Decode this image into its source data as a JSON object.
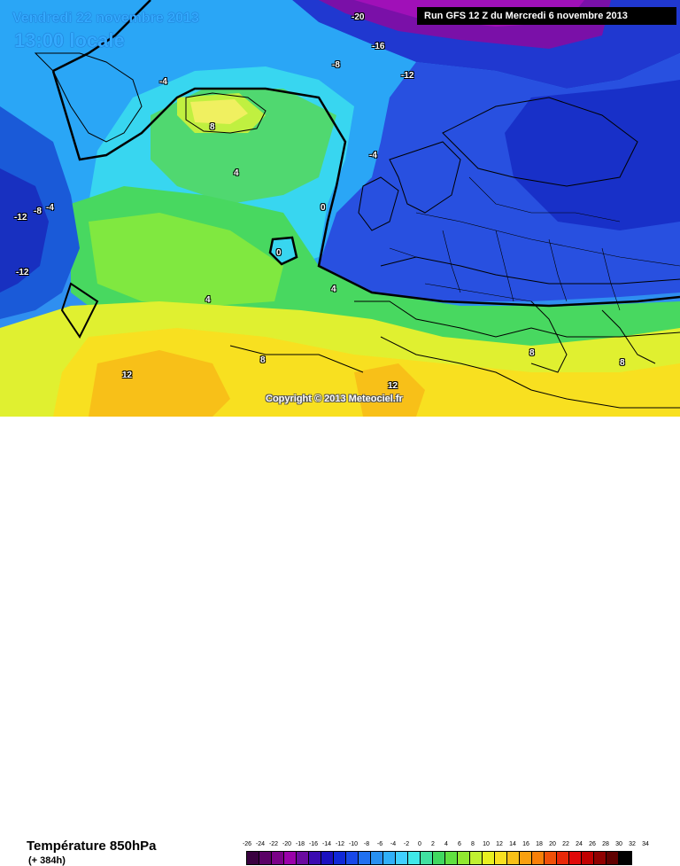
{
  "header": {
    "valid_date": "Vendredi 22 novembre 2013",
    "valid_time": "13:00 locale",
    "run_info": "Run GFS 12 Z du Mercredi 6 novembre 2013"
  },
  "map": {
    "copyright": "Copyright © 2013 Meteociel.fr",
    "isotherm_labels": [
      "-20",
      "-16",
      "-12",
      "-8",
      "-4",
      "8",
      "4",
      "-4",
      "0",
      "-12",
      "-8",
      "-4",
      "0",
      "-12",
      "4",
      "4",
      "8",
      "12",
      "12",
      "8",
      "8"
    ]
  },
  "footer": {
    "field_title": "Température 850hPa",
    "lead_time": "(+ 384h)"
  },
  "legend": {
    "labels": [
      "-26",
      "-24",
      "-22",
      "-20",
      "-18",
      "-16",
      "-14",
      "-12",
      "-10",
      "-8",
      "-6",
      "-4",
      "-2",
      "0",
      "2",
      "4",
      "6",
      "8",
      "10",
      "12",
      "14",
      "16",
      "18",
      "20",
      "22",
      "24",
      "26",
      "28",
      "30",
      "32",
      "34"
    ],
    "colors": [
      "#3a0040",
      "#5a0066",
      "#7a0088",
      "#9a00aa",
      "#6a0aa0",
      "#3a0ab0",
      "#1a10c0",
      "#1028d8",
      "#1848e8",
      "#2070f0",
      "#2890f0",
      "#30b0f8",
      "#40d0ff",
      "#40e8e8",
      "#40e0a0",
      "#40d860",
      "#60e040",
      "#90e830",
      "#c0f030",
      "#e8f020",
      "#f8e020",
      "#f8c018",
      "#f8a010",
      "#f88008",
      "#f05008",
      "#e82808",
      "#e00808",
      "#c00000",
      "#900000",
      "#600000",
      "#000000"
    ]
  }
}
